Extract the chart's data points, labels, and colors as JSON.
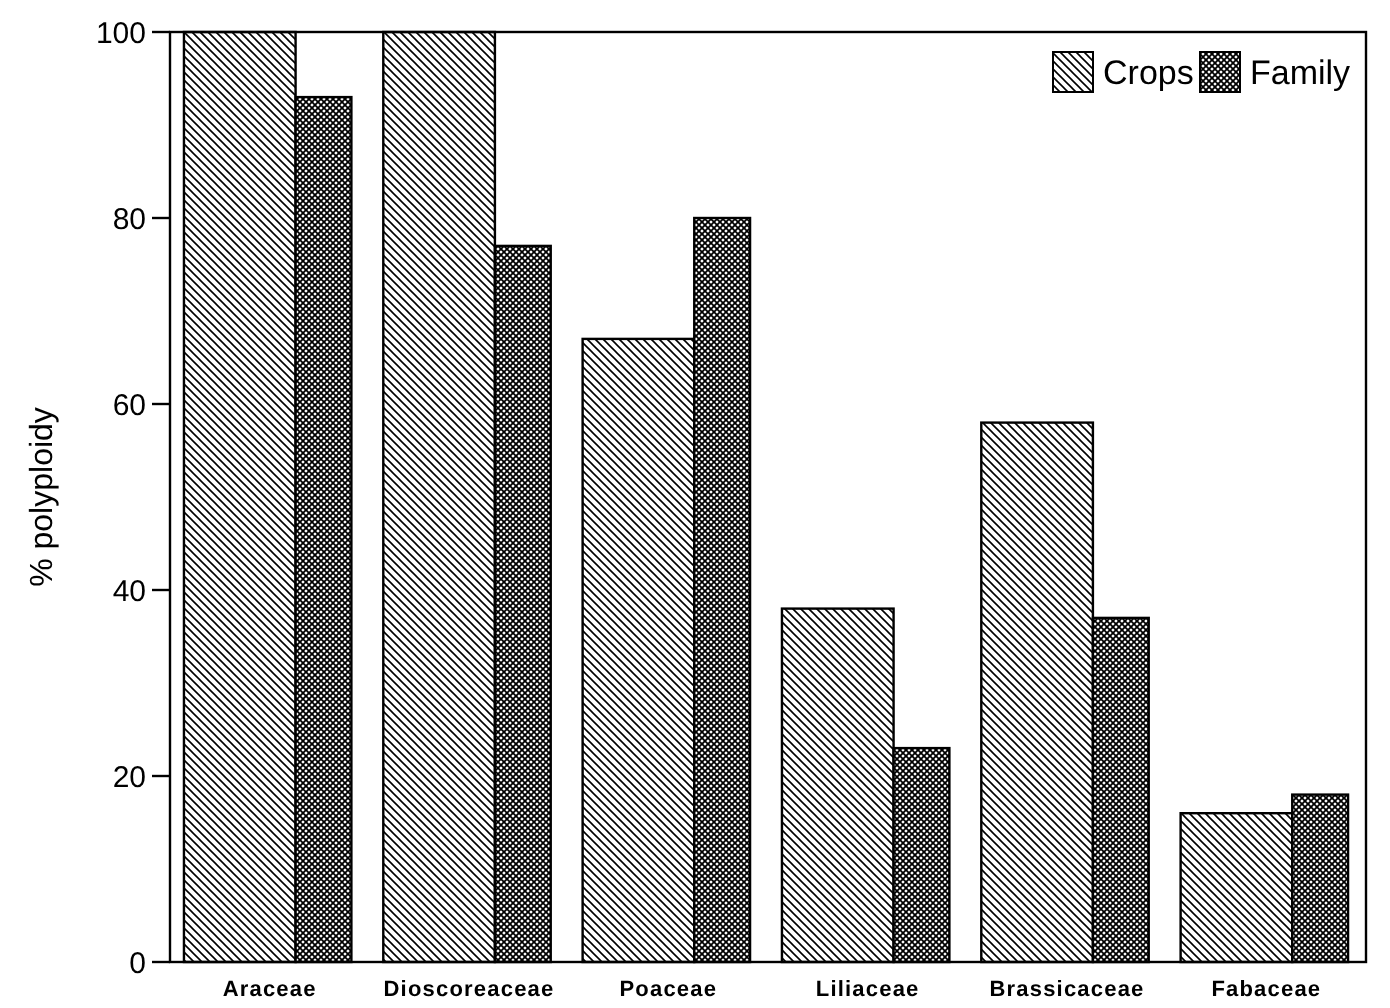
{
  "chart_data": {
    "type": "bar",
    "ylabel": "% polyploidy",
    "categories": [
      "Araceae",
      "Dioscoreaceae",
      "Poaceae",
      "Liliaceae",
      "Brassicaceae",
      "Fabaceae"
    ],
    "series": [
      {
        "name": "Crops",
        "color": "#000000",
        "values": [
          100,
          100,
          67,
          38,
          58,
          16
        ]
      },
      {
        "name": "Family",
        "color": "#000000",
        "values": [
          93,
          77,
          80,
          23,
          37,
          18
        ]
      }
    ],
    "ylim": [
      0,
      100
    ],
    "yticks": [
      0,
      20,
      40,
      60,
      80,
      100
    ],
    "grid": false,
    "legend": "top right"
  }
}
